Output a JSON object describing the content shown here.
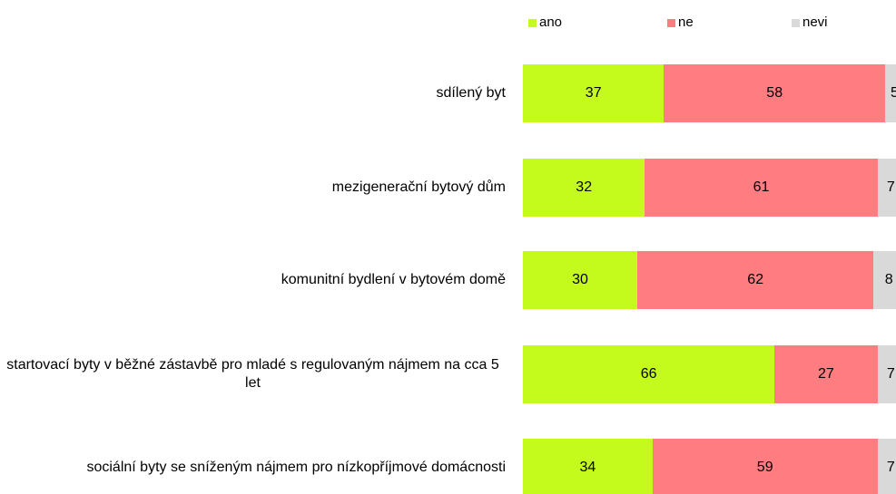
{
  "chart_data": {
    "type": "stacked_bar_horizontal",
    "categories": [
      "sdílený byt",
      "mezigenerační bytový dům",
      "komunitní bydlení v bytovém domě",
      "startovací byty v běžné zástavbě pro mladé s regulovaným nájmem na cca 5 let",
      "sociální byty se sníženým nájmem pro nízkopříjmové domácnosti"
    ],
    "series": [
      {
        "name": "ano",
        "color": "#c5fb1c",
        "values": [
          37,
          32,
          30,
          66,
          34
        ]
      },
      {
        "name": "ne",
        "color": "#ff7c80",
        "values": [
          58,
          61,
          62,
          27,
          59
        ]
      },
      {
        "name": "nevi",
        "color": "#d9d9d9",
        "values": [
          5,
          7,
          8,
          7,
          7
        ]
      }
    ],
    "xlim": [
      0,
      100
    ]
  }
}
